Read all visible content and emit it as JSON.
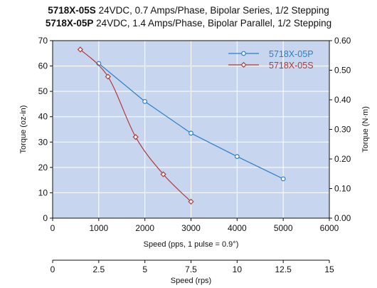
{
  "header": {
    "line1_bold": "5718X-05S",
    "line1_rest": " 24VDC, 0.7 Amps/Phase, Bipolar Series, 1/2 Stepping",
    "line2_bold": "5718X-05P",
    "line2_rest": " 24VDC, 1.4 Amps/Phase, Bipolar Parallel, 1/2 Stepping"
  },
  "chart_data": {
    "type": "line",
    "title": "",
    "xlabel": "Speed (pps, 1 pulse = 0.9°)",
    "ylabel": "Torque (oz-in)",
    "y2label": "Torque (N·m)",
    "x2label": "Speed (rps)",
    "xlim": [
      0,
      6000
    ],
    "ylim": [
      0,
      70
    ],
    "y2lim": [
      0,
      0.6
    ],
    "x2lim": [
      0,
      15
    ],
    "xticks": [
      "0",
      "1000",
      "2000",
      "3000",
      "4000",
      "5000",
      "6000"
    ],
    "yticks": [
      "0",
      "10",
      "20",
      "30",
      "40",
      "50",
      "60",
      "70"
    ],
    "y2ticks": [
      "0.00",
      "0.10",
      "0.20",
      "0.30",
      "0.40",
      "0.50",
      "0.60"
    ],
    "x2ticks": [
      "0",
      "2.5",
      "5",
      "7.5",
      "10",
      "12.5",
      "15"
    ],
    "grid": true,
    "legend_position": "top-right",
    "background_color": "#c7d6ee",
    "series": [
      {
        "name": "5718X-05P",
        "color": "#2a7fc8",
        "marker": "circle",
        "curve": "straight",
        "x": [
          1000,
          2000,
          3000,
          4000,
          5000
        ],
        "y": [
          61,
          46,
          33.5,
          24.3,
          15.5
        ]
      },
      {
        "name": "5718X-05S",
        "color": "#b03a3a",
        "marker": "diamond",
        "curve": "smooth",
        "x": [
          600,
          1200,
          1800,
          2400,
          3000
        ],
        "y": [
          66.5,
          55.8,
          32,
          17.3,
          6.5
        ]
      }
    ]
  }
}
